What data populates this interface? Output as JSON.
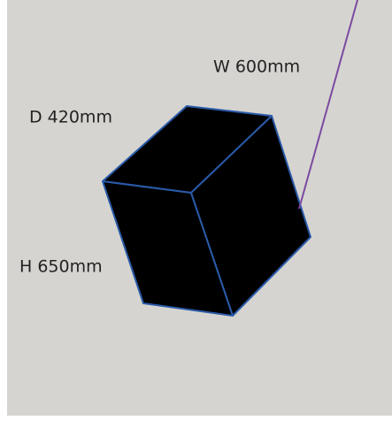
{
  "labels": {
    "width": "W 600mm",
    "depth": "D 420mm",
    "height": "H 650mm"
  }
}
